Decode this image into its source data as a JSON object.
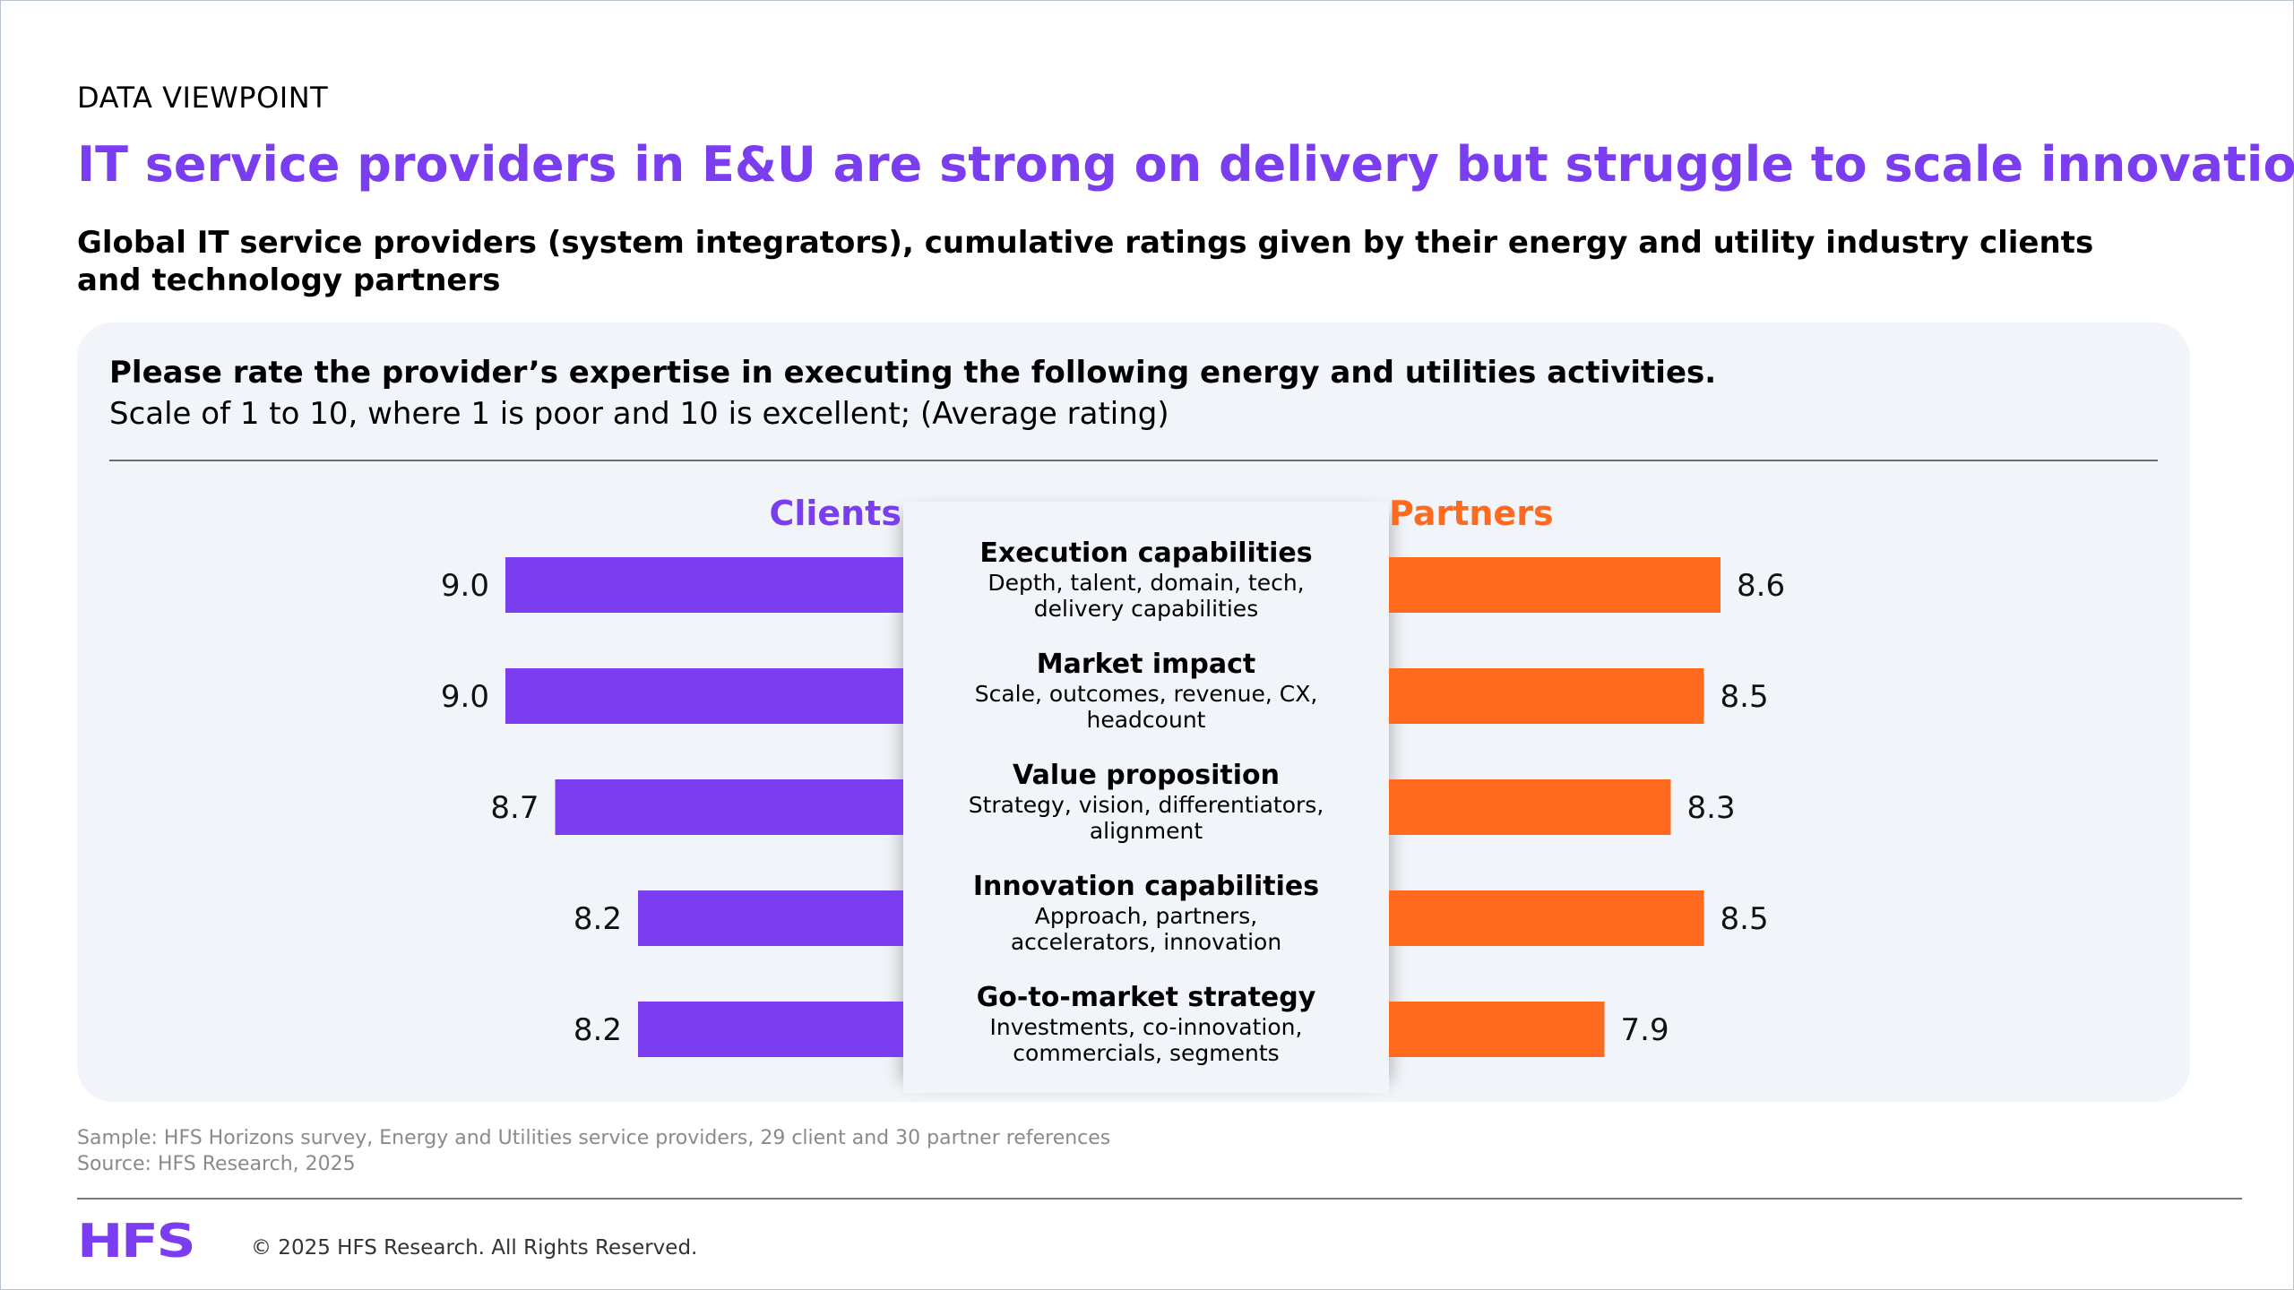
{
  "header": {
    "kicker": "DATA VIEWPOINT",
    "headline": "IT service providers in E&U are strong on delivery but struggle to scale innovation",
    "subtitle": "Global IT service providers (system integrators), cumulative ratings given by their energy and utility industry clients and technology partners"
  },
  "panel": {
    "question": "Please rate the provider’s expertise in executing the following energy and utilities activities.",
    "scale_note": "Scale of 1 to 10, where 1 is poor and 10 is excellent; (Average rating)"
  },
  "colors": {
    "clients": "#7a3ef0",
    "partners": "#ff6a1f",
    "headline": "#7a3ef0"
  },
  "chart_data": {
    "type": "bar",
    "orientation": "horizontal-butterfly",
    "categories": [
      {
        "title": "Execution capabilities",
        "desc": [
          "Depth, talent, domain, tech,",
          "delivery capabilities"
        ]
      },
      {
        "title": "Market impact",
        "desc": [
          "Scale, outcomes, revenue, CX,",
          "headcount"
        ]
      },
      {
        "title": "Value proposition",
        "desc": [
          "Strategy, vision, differentiators,",
          "alignment"
        ]
      },
      {
        "title": "Innovation capabilities",
        "desc": [
          "Approach, partners,",
          "accelerators, innovation"
        ]
      },
      {
        "title": "Go-to-market strategy",
        "desc": [
          "Investments, co-innovation,",
          "commercials, segments"
        ]
      }
    ],
    "series": [
      {
        "name": "Clients",
        "values": [
          9.0,
          9.0,
          8.7,
          8.2,
          8.2
        ],
        "labels": [
          "9.0",
          "9.0",
          "8.7",
          "8.2",
          "8.2"
        ],
        "side": "left"
      },
      {
        "name": "Partners",
        "values": [
          8.6,
          8.5,
          8.3,
          8.5,
          7.9
        ],
        "labels": [
          "8.6",
          "8.5",
          "8.3",
          "8.5",
          "7.9"
        ],
        "side": "right"
      }
    ],
    "value_axis_min": 6.6
  },
  "footer": {
    "sample": "Sample: HFS Horizons survey, Energy and Utilities service providers, 29 client and 30 partner references",
    "source": "Source: HFS Research, 2025",
    "logo": "HFS",
    "copyright": "© 2025 HFS Research. All Rights Reserved."
  }
}
